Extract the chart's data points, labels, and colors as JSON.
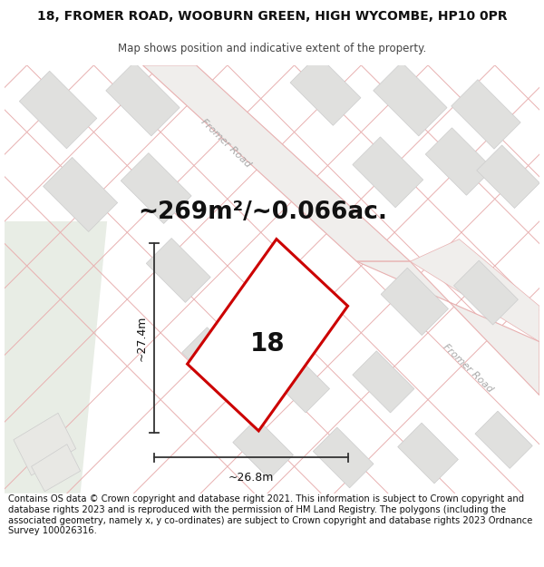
{
  "title": "18, FROMER ROAD, WOOBURN GREEN, HIGH WYCOMBE, HP10 0PR",
  "subtitle": "Map shows position and indicative extent of the property.",
  "area_text": "~269m²/~0.066ac.",
  "property_number": "18",
  "dim_width": "~26.8m",
  "dim_height": "~27.4m",
  "road_label_top": "Fromer Road",
  "road_label_right": "Fromer Road",
  "footer": "Contains OS data © Crown copyright and database right 2021. This information is subject to Crown copyright and database rights 2023 and is reproduced with the permission of HM Land Registry. The polygons (including the associated geometry, namely x, y co-ordinates) are subject to Crown copyright and database rights 2023 Ordnance Survey 100026316.",
  "map_bg": "#f5f4f2",
  "green_color": "#e8ede5",
  "plot_outline_color": "#cc0000",
  "block_color": "#e0e0de",
  "block_edge": "#cccccc",
  "road_line_color": "#e8b0b0",
  "road_fill": "#f5f4f2",
  "road_label_color": "#aaaaaa",
  "dim_line_color": "#333333",
  "title_fontsize": 10,
  "subtitle_fontsize": 8.5,
  "area_fontsize": 19,
  "number_fontsize": 20,
  "footer_fontsize": 7.2,
  "dim_fontsize": 9
}
